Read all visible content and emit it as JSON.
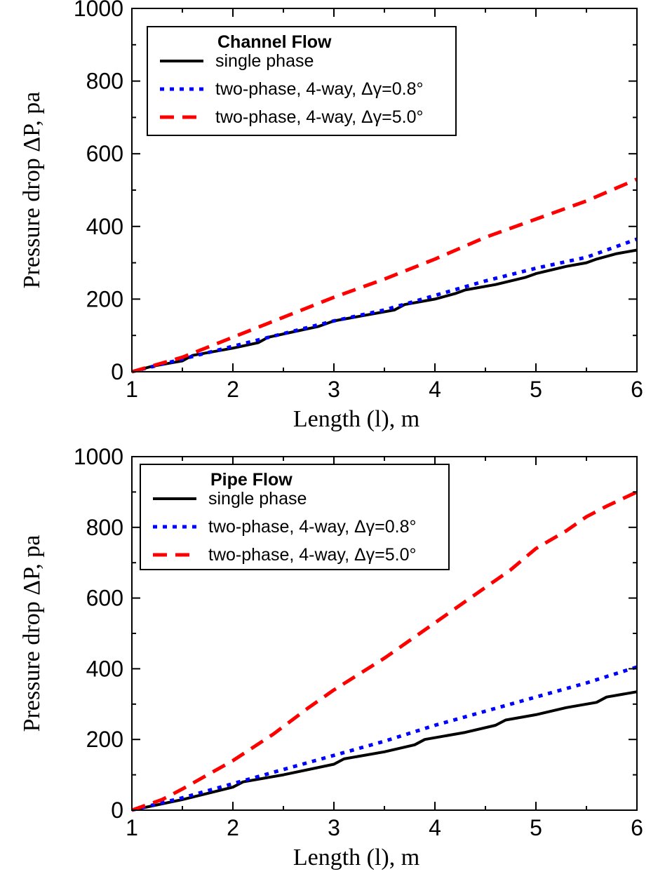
{
  "chart_data": [
    {
      "type": "line",
      "legend_title": "Channel Flow",
      "legend_position": "top-left",
      "xlabel": "Length (l), m",
      "ylabel": "Pressure drop ΔP, pa",
      "xlim": [
        1,
        6
      ],
      "ylim": [
        0,
        1000
      ],
      "x_ticks": [
        "1",
        "2",
        "3",
        "4",
        "5",
        "6"
      ],
      "y_ticks": [
        "0",
        "200",
        "400",
        "600",
        "800",
        "1000"
      ],
      "grid": false,
      "series": [
        {
          "name": "single phase",
          "color": "#000000",
          "style": "solid",
          "x": [
            1.0,
            1.2,
            1.5,
            1.6,
            2.0,
            2.25,
            2.35,
            2.6,
            2.85,
            3.0,
            3.3,
            3.6,
            3.7,
            4.0,
            4.2,
            4.3,
            4.6,
            4.9,
            5.0,
            5.3,
            5.5,
            5.6,
            5.8,
            6.0
          ],
          "y": [
            0,
            15,
            30,
            45,
            65,
            80,
            95,
            110,
            125,
            140,
            155,
            170,
            185,
            200,
            215,
            225,
            240,
            260,
            270,
            290,
            300,
            310,
            325,
            335
          ]
        },
        {
          "name": "two-phase, 4-way, Δγ=0.8°",
          "color": "#0000ff",
          "style": "dotted",
          "x": [
            1.0,
            1.5,
            2.0,
            2.5,
            3.0,
            3.5,
            4.0,
            4.5,
            5.0,
            5.5,
            6.0
          ],
          "y": [
            0,
            35,
            70,
            105,
            140,
            170,
            210,
            250,
            285,
            315,
            365
          ]
        },
        {
          "name": "two-phase, 4-way, Δγ=5.0°",
          "color": "#ff0000",
          "style": "dashed",
          "x": [
            1.0,
            1.5,
            2.0,
            2.5,
            3.0,
            3.5,
            4.0,
            4.5,
            5.0,
            5.5,
            6.0
          ],
          "y": [
            0,
            40,
            95,
            150,
            205,
            255,
            310,
            370,
            420,
            470,
            530
          ]
        }
      ]
    },
    {
      "type": "line",
      "legend_title": "Pipe Flow",
      "legend_position": "top-left",
      "xlabel": "Length (l), m",
      "ylabel": "Pressure drop ΔP, pa",
      "xlim": [
        1,
        6
      ],
      "ylim": [
        0,
        1000
      ],
      "x_ticks": [
        "1",
        "2",
        "3",
        "4",
        "5",
        "6"
      ],
      "y_ticks": [
        "0",
        "200",
        "400",
        "600",
        "800",
        "1000"
      ],
      "grid": false,
      "series": [
        {
          "name": "single phase",
          "color": "#000000",
          "style": "solid",
          "x": [
            1.0,
            1.5,
            2.0,
            2.1,
            2.5,
            3.0,
            3.1,
            3.5,
            3.8,
            3.9,
            4.3,
            4.6,
            4.7,
            5.0,
            5.3,
            5.6,
            5.7,
            6.0
          ],
          "y": [
            0,
            30,
            65,
            80,
            100,
            130,
            145,
            165,
            185,
            200,
            220,
            240,
            255,
            270,
            290,
            305,
            320,
            335
          ]
        },
        {
          "name": "two-phase, 4-way, Δγ=0.8°",
          "color": "#0000ff",
          "style": "dotted",
          "x": [
            1.0,
            1.5,
            2.0,
            2.5,
            3.0,
            3.5,
            4.0,
            4.5,
            5.0,
            5.5,
            6.0
          ],
          "y": [
            0,
            35,
            75,
            115,
            155,
            195,
            240,
            280,
            320,
            360,
            405
          ]
        },
        {
          "name": "two-phase, 4-way, Δγ=5.0°",
          "color": "#ff0000",
          "style": "dashed",
          "x": [
            1.0,
            1.3,
            1.5,
            1.75,
            2.0,
            2.4,
            2.75,
            3.0,
            3.5,
            3.75,
            4.0,
            4.3,
            4.6,
            4.75,
            5.0,
            5.3,
            5.5,
            5.7,
            6.0
          ],
          "y": [
            0,
            30,
            60,
            100,
            140,
            215,
            290,
            340,
            430,
            480,
            530,
            590,
            650,
            680,
            740,
            790,
            830,
            860,
            900
          ]
        }
      ]
    }
  ]
}
